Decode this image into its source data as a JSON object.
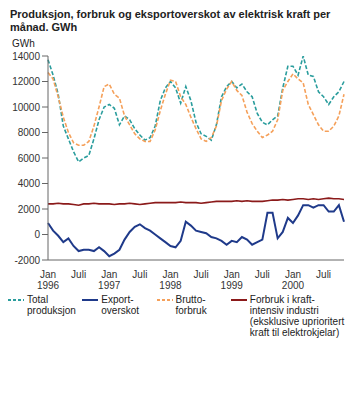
{
  "chart_data": {
    "type": "line",
    "title": "Produksjon, forbruk og eksportoverskot av elektrisk kraft per månad. GWh",
    "y_label": "GWh",
    "categories": [
      "Jan 1996",
      null,
      null,
      null,
      null,
      null,
      "Juli",
      null,
      null,
      null,
      null,
      null,
      "Jan 1997",
      null,
      null,
      null,
      null,
      null,
      "Juli",
      null,
      null,
      null,
      null,
      null,
      "Jan 1998",
      null,
      null,
      null,
      null,
      null,
      "Juli",
      null,
      null,
      null,
      null,
      null,
      "Jan 1999",
      null,
      null,
      null,
      null,
      null,
      "Juli",
      null,
      null,
      null,
      null,
      null,
      "Jan 2000",
      null,
      null,
      null,
      null,
      null,
      "Juli",
      null,
      null,
      null,
      null
    ],
    "ylim": [
      -2000,
      14000
    ],
    "yticks": [
      -2000,
      0,
      2000,
      4000,
      6000,
      8000,
      10000,
      12000,
      14000
    ],
    "grid": false,
    "legend": "bottom",
    "series": [
      {
        "name": "Total produksjon",
        "color": "#2a9d9d",
        "line_style": "dashed",
        "values": [
          13700,
          12500,
          11000,
          8500,
          7500,
          6500,
          5700,
          6000,
          6200,
          7500,
          9000,
          10000,
          10200,
          9900,
          8600,
          9300,
          9000,
          8300,
          7800,
          7400,
          7600,
          8500,
          10500,
          11500,
          12000,
          11500,
          10300,
          11600,
          10500,
          8800,
          7900,
          7700,
          7400,
          8600,
          10800,
          11600,
          12000,
          11500,
          11800,
          11200,
          10800,
          9500,
          8800,
          8600,
          9000,
          9300,
          11500,
          13200,
          13200,
          12500,
          14000,
          12500,
          12400,
          11200,
          10800,
          10200,
          10800,
          11200,
          12000
        ]
      },
      {
        "name": "Export-overskot",
        "color": "#1f3a8a",
        "line_style": "solid",
        "values": [
          900,
          300,
          -100,
          -600,
          -300,
          -900,
          -1300,
          -1200,
          -1200,
          -1300,
          -1000,
          -1300,
          -1700,
          -1500,
          -1200,
          -400,
          200,
          600,
          800,
          500,
          300,
          0,
          -300,
          -600,
          -900,
          -1000,
          -500,
          1000,
          700,
          300,
          200,
          100,
          -200,
          -300,
          -500,
          -800,
          -500,
          -600,
          -200,
          -400,
          -800,
          -600,
          -400,
          1700,
          1700,
          -300,
          200,
          1300,
          900,
          1500,
          2300,
          2300,
          2100,
          2300,
          2300,
          1800,
          1800,
          2300,
          1000
        ]
      },
      {
        "name": "Brutto-forbruk",
        "color": "#f5a05a",
        "line_style": "dashed",
        "values": [
          12700,
          12200,
          10800,
          9200,
          8000,
          7200,
          7000,
          7000,
          7300,
          8500,
          10000,
          11600,
          11800,
          11000,
          10700,
          9300,
          8600,
          7900,
          7500,
          7300,
          7300,
          8200,
          9700,
          11000,
          12100,
          12000,
          10800,
          10200,
          9200,
          8300,
          7500,
          7300,
          7600,
          8500,
          10500,
          11400,
          12000,
          11300,
          10900,
          9600,
          8700,
          8100,
          7600,
          7800,
          8100,
          9000,
          11300,
          12000,
          12600,
          12200,
          11900,
          10200,
          9400,
          8600,
          8100,
          8100,
          8500,
          9300,
          11000
        ]
      },
      {
        "name": "Forbruk i kraft-intensiv industri (eksklusive uprioritert kraft til elektrokjelar)",
        "color": "#8b1a1a",
        "line_style": "solid",
        "values": [
          2400,
          2400,
          2450,
          2400,
          2400,
          2350,
          2300,
          2400,
          2400,
          2450,
          2400,
          2400,
          2400,
          2350,
          2400,
          2400,
          2450,
          2400,
          2350,
          2400,
          2450,
          2500,
          2500,
          2500,
          2500,
          2500,
          2550,
          2500,
          2500,
          2500,
          2450,
          2500,
          2550,
          2600,
          2600,
          2600,
          2600,
          2650,
          2600,
          2650,
          2600,
          2600,
          2600,
          2650,
          2700,
          2700,
          2750,
          2700,
          2750,
          2800,
          2800,
          2750,
          2800,
          2750,
          2800,
          2850,
          2800,
          2800,
          2750
        ]
      }
    ]
  }
}
